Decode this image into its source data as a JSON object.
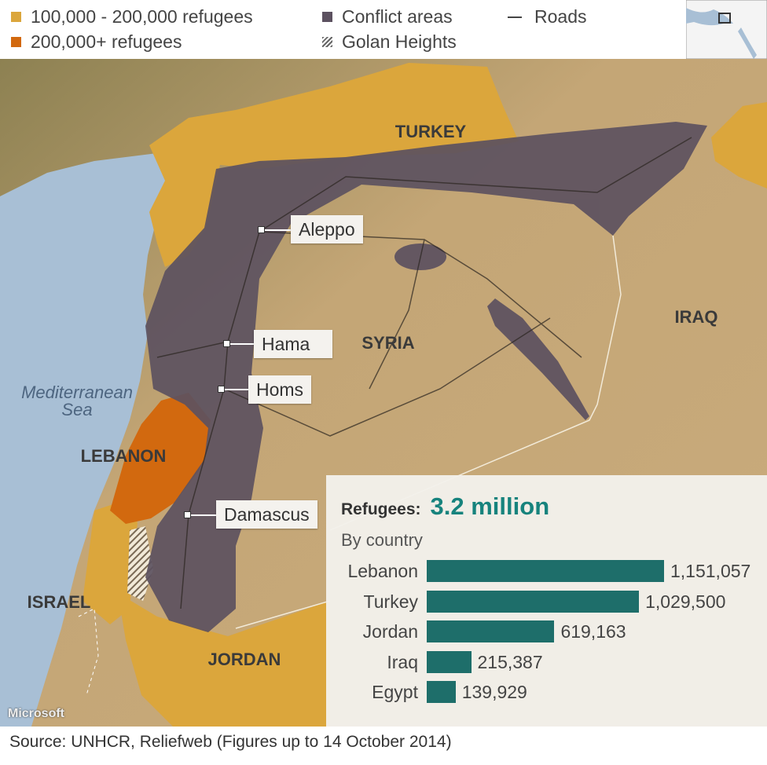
{
  "legend": {
    "items": [
      {
        "label": "100,000 - 200,000 refugees",
        "color": "#dba63c"
      },
      {
        "label": "200,000+ refugees",
        "color": "#d2690f"
      },
      {
        "label": "Conflict areas",
        "color": "#5c5160"
      },
      {
        "label": "Golan Heights",
        "pattern": "hatched"
      },
      {
        "label": "Roads",
        "symbol": "line"
      }
    ]
  },
  "map": {
    "countries": [
      "TURKEY",
      "SYRIA",
      "IRAQ",
      "LEBANON",
      "ISRAEL",
      "JORDAN"
    ],
    "sea": [
      "Mediterranean",
      "Sea"
    ],
    "cities": [
      "Aleppo",
      "Hama",
      "Homs",
      "Damascus"
    ],
    "credit": "Microsoft",
    "colors": {
      "sea": "#a8bfd5",
      "land": "#c4a676",
      "conflict": "#5c5160"
    }
  },
  "chart_data": {
    "type": "bar",
    "title": "Refugees:",
    "total": "3.2 million",
    "subtitle": "By country",
    "categories": [
      "Lebanon",
      "Turkey",
      "Jordan",
      "Iraq",
      "Egypt"
    ],
    "values": [
      1151057,
      1029500,
      619163,
      215387,
      139929
    ],
    "value_labels": [
      "1,151,057",
      "1,029,500",
      "619,163",
      "215,387",
      "139,929"
    ],
    "orientation": "horizontal",
    "bar_color": "#1e6e6a",
    "total_color": "#17837d"
  },
  "footer": {
    "source": "Source: UNHCR, Reliefweb (Figures up to 14 October 2014)"
  }
}
